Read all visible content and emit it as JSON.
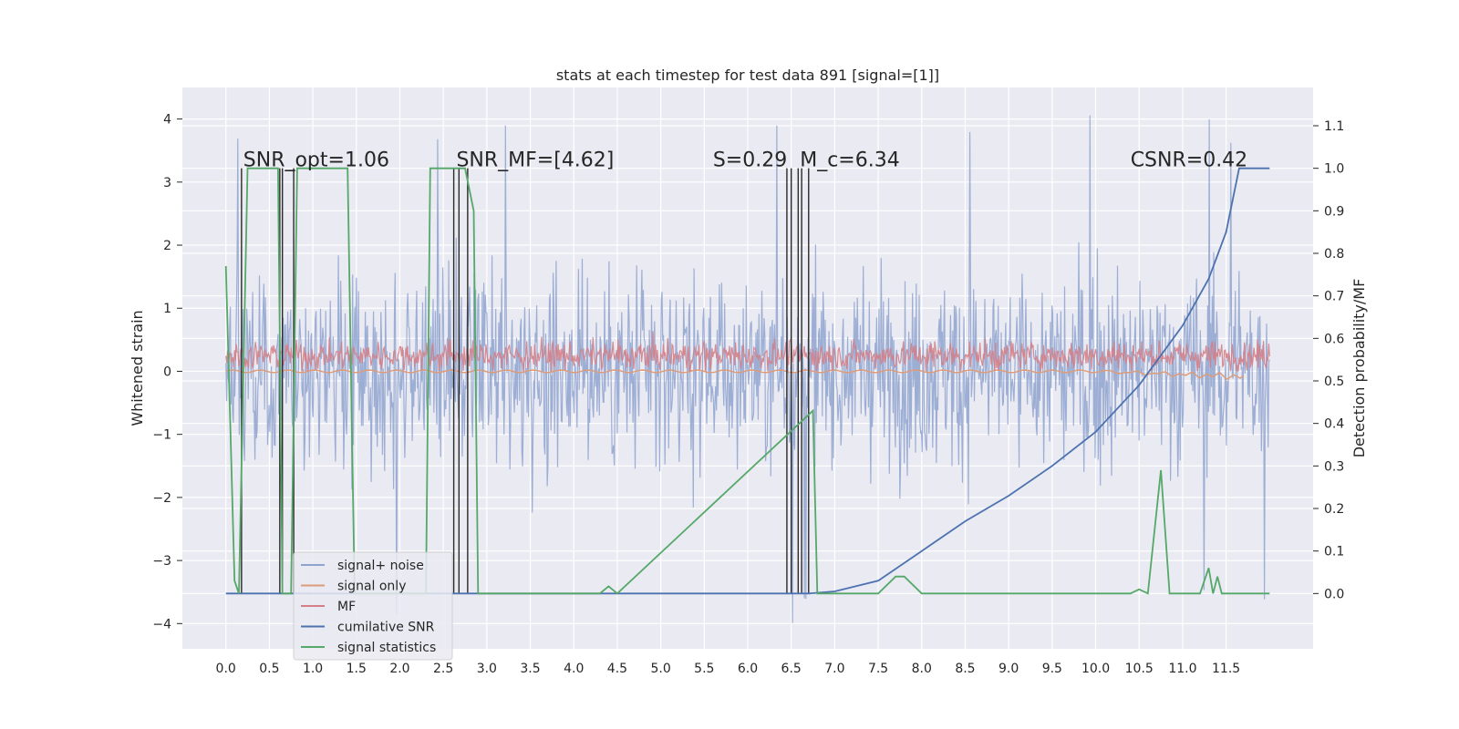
{
  "chart_data": {
    "type": "line",
    "title": "stats at each timestep for test data 891 [signal=[1]]",
    "xlabel": "",
    "ylabel": "Whitened strain",
    "ylabel_right": "Detection probability/MF",
    "xlim": [
      -0.5,
      12.5
    ],
    "ylim": [
      -4.4,
      4.5
    ],
    "ylim_right": [
      -0.13,
      1.19
    ],
    "x_ticks": [
      "0.0",
      "0.5",
      "1.0",
      "1.5",
      "2.0",
      "2.5",
      "3.0",
      "3.5",
      "4.0",
      "4.5",
      "5.0",
      "5.5",
      "6.0",
      "6.5",
      "7.0",
      "7.5",
      "8.0",
      "8.5",
      "9.0",
      "9.5",
      "10.0",
      "10.5",
      "11.0",
      "11.5"
    ],
    "y_ticks": [
      "−4",
      "−3",
      "−2",
      "−1",
      "0",
      "1",
      "2",
      "3",
      "4"
    ],
    "y_ticks_right": [
      "0.0",
      "0.1",
      "0.2",
      "0.3",
      "0.4",
      "0.5",
      "0.6",
      "0.7",
      "0.8",
      "0.9",
      "1.0",
      "1.1"
    ],
    "grid": true,
    "legend_position": "lower-left",
    "series": [
      {
        "name": "signal+ noise",
        "color": "#8fa3cf",
        "axis": "left",
        "x_range": [
          0,
          12
        ],
        "amplitude_band": [
          -2.8,
          2.9
        ],
        "peak_max": 4.1,
        "peak_min": -4.0
      },
      {
        "name": "signal only",
        "color": "#dd9b7a",
        "axis": "left",
        "x_range": [
          0,
          11.7
        ],
        "values_note": ""
      },
      {
        "name": "MF",
        "color": "#d47f87",
        "axis": "left",
        "x_range": [
          0,
          12
        ],
        "amplitude_band": [
          0.0,
          0.6
        ]
      },
      {
        "name": "cumilative SNR",
        "color": "#4c72b0",
        "axis": "right",
        "x": [
          0,
          1,
          2,
          3,
          4,
          5,
          6,
          6.7,
          7.0,
          7.5,
          8.0,
          8.5,
          9.0,
          9.5,
          10.0,
          10.5,
          11.0,
          11.3,
          11.5,
          11.65,
          11.7,
          12.0
        ],
        "y": [
          0,
          0,
          0,
          0,
          0,
          0,
          0,
          0,
          0.005,
          0.03,
          0.1,
          0.17,
          0.23,
          0.3,
          0.38,
          0.49,
          0.63,
          0.74,
          0.85,
          1.0,
          1.0,
          1.0
        ]
      },
      {
        "name": "signal statistics",
        "color": "#55a868",
        "axis": "right",
        "x": [
          0,
          0.05,
          0.1,
          0.15,
          0.25,
          0.35,
          0.6,
          0.65,
          0.75,
          0.82,
          1.4,
          1.48,
          2.3,
          2.35,
          2.4,
          2.7,
          2.75,
          2.85,
          2.9,
          3.1,
          4.3,
          4.4,
          4.5,
          6.75,
          6.8,
          6.9,
          7.5,
          7.7,
          7.8,
          8.0,
          10.4,
          10.5,
          10.6,
          10.75,
          10.85,
          11.2,
          11.3,
          11.35,
          11.4,
          11.45,
          11.5,
          12.0
        ],
        "y": [
          0.77,
          0.4,
          0.03,
          0.0,
          1.0,
          1.0,
          1.0,
          0.0,
          0.0,
          1.0,
          1.0,
          0.0,
          0.0,
          1.0,
          1.0,
          1.0,
          1.0,
          0.9,
          0.0,
          0.0,
          0.0,
          0.017,
          0.0,
          0.43,
          0.0,
          0.0,
          0.0,
          0.04,
          0.04,
          0.0,
          0.0,
          0.01,
          0.0,
          0.29,
          0.0,
          0.0,
          0.06,
          0.0,
          0.04,
          0.0,
          0.0,
          0.0
        ]
      }
    ],
    "vertical_lines_x": [
      0.18,
      0.62,
      0.65,
      0.78,
      2.62,
      2.68,
      2.78,
      6.45,
      6.5,
      6.58,
      6.62,
      6.7
    ],
    "annotations": [
      {
        "text": "SNR_opt=1.06",
        "x": 0.2,
        "y_right": 1.0
      },
      {
        "text": "SNR_MF=[4.62]",
        "x": 2.65,
        "y_right": 1.0,
        "italic_part": "SNR_MF"
      },
      {
        "text": "S=0.29",
        "x": 5.6,
        "y_right": 1.0,
        "italic_part": "S"
      },
      {
        "text": "M_c=6.34",
        "x": 6.6,
        "y_right": 1.0,
        "italic_part": "M_c"
      },
      {
        "text": "CSNR=0.42",
        "x": 10.4,
        "y_right": 1.0
      }
    ]
  }
}
